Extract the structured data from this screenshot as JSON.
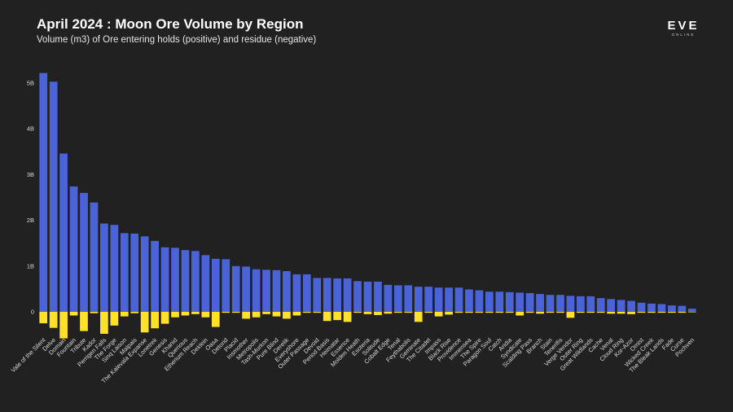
{
  "chart_data": {
    "type": "bar",
    "title": "April 2024 : Moon Ore Volume by Region",
    "subtitle": "Volume (m3) of Ore entering holds (positive) and residue (negative)",
    "ylim": [
      -0.6,
      5.3
    ],
    "yticks": [
      {
        "value": 0,
        "label": "0"
      },
      {
        "value": 1,
        "label": "1B"
      },
      {
        "value": 2,
        "label": "2B"
      },
      {
        "value": 3,
        "label": "3B"
      },
      {
        "value": 4,
        "label": "4B"
      },
      {
        "value": 5,
        "label": "5B"
      }
    ],
    "categories": [
      "Vale of the Silent",
      "Delve",
      "Domain",
      "Fountain",
      "Tribute",
      "Kador",
      "Perrigen Falls",
      "The Forge",
      "Sinq Laison",
      "Malpais",
      "The Kalevala Expanse",
      "Lonetrek",
      "Genesis",
      "Khanid",
      "Querious",
      "Etherium Reach",
      "Deklein",
      "Oasa",
      "Detorid",
      "Placid",
      "Insmother",
      "Metropolis",
      "Tash-Murkon",
      "Pure Blind",
      "Derelik",
      "Everyshore",
      "Outer Passage",
      "Devoid",
      "Period Basis",
      "Heimatar",
      "Essence",
      "Molden Heath",
      "Esoteria",
      "Solitude",
      "Cobalt Edge",
      "Tenal",
      "Feythabolis",
      "Geminate",
      "The Citadel",
      "Impass",
      "Black Rise",
      "Providence",
      "Immensea",
      "The Spire",
      "Paragon Soul",
      "Catch",
      "Aridia",
      "Syndicate",
      "Scalding Pass",
      "Branch",
      "Stain",
      "Tenerifis",
      "Verge Vendor",
      "Outer Ring",
      "Great Wildlands",
      "Cache",
      "Venal",
      "Cloud Ring",
      "Kor-Azor",
      "Omist",
      "Wicked Creek",
      "The Bleak Lands",
      "Fade",
      "Curse",
      "Pochven"
    ],
    "series": [
      {
        "name": "Ore entering holds",
        "color": "#4a63d9",
        "values": [
          5.22,
          5.03,
          3.46,
          2.74,
          2.6,
          2.39,
          1.93,
          1.9,
          1.72,
          1.71,
          1.65,
          1.55,
          1.41,
          1.4,
          1.35,
          1.33,
          1.24,
          1.16,
          1.15,
          1.0,
          0.99,
          0.93,
          0.92,
          0.91,
          0.89,
          0.82,
          0.82,
          0.74,
          0.74,
          0.73,
          0.73,
          0.67,
          0.66,
          0.66,
          0.59,
          0.58,
          0.58,
          0.55,
          0.55,
          0.53,
          0.53,
          0.53,
          0.49,
          0.47,
          0.44,
          0.44,
          0.43,
          0.42,
          0.41,
          0.39,
          0.37,
          0.37,
          0.35,
          0.34,
          0.34,
          0.3,
          0.28,
          0.26,
          0.24,
          0.2,
          0.18,
          0.17,
          0.14,
          0.13,
          0.07
        ]
      },
      {
        "name": "Residue",
        "color": "#ffe12a",
        "values": [
          -0.25,
          -0.35,
          -0.58,
          -0.08,
          -0.42,
          -0.03,
          -0.48,
          -0.3,
          -0.1,
          -0.03,
          -0.45,
          -0.36,
          -0.26,
          -0.12,
          -0.08,
          -0.05,
          -0.12,
          -0.33,
          -0.02,
          -0.02,
          -0.15,
          -0.12,
          -0.05,
          -0.1,
          -0.15,
          -0.08,
          -0.02,
          -0.02,
          -0.2,
          -0.18,
          -0.22,
          -0.02,
          -0.05,
          -0.07,
          -0.04,
          -0.02,
          -0.02,
          -0.22,
          -0.02,
          -0.1,
          -0.06,
          -0.02,
          -0.02,
          -0.02,
          -0.02,
          -0.02,
          -0.02,
          -0.08,
          -0.02,
          -0.04,
          -0.02,
          -0.02,
          -0.13,
          -0.02,
          -0.02,
          -0.02,
          -0.04,
          -0.04,
          -0.05,
          -0.02,
          -0.02,
          -0.02,
          -0.02,
          -0.02,
          -0.01
        ]
      }
    ],
    "xlabel": "",
    "ylabel": "",
    "grid": false,
    "legend": "none"
  },
  "logo": {
    "main": "EVE",
    "sub": "ONLINE"
  }
}
